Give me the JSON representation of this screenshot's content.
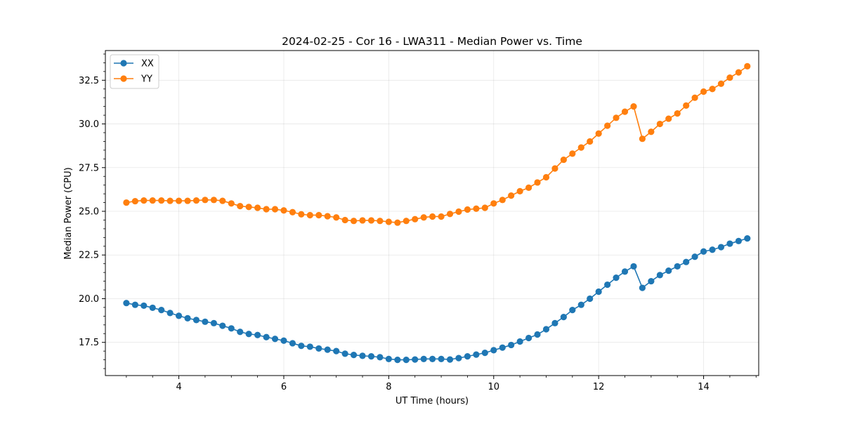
{
  "chart_data": {
    "type": "line",
    "title": "2024-02-25 - Cor 16 - LWA311 - Median Power vs. Time",
    "xlabel": "UT Time (hours)",
    "ylabel": "Median Power (CPU)",
    "xlim": [
      2.6,
      15.05
    ],
    "ylim": [
      15.6,
      34.2
    ],
    "xticks": [
      4,
      6,
      8,
      10,
      12,
      14
    ],
    "xtick_labels": [
      "4",
      "6",
      "8",
      "10",
      "12",
      "14"
    ],
    "yticks": [
      17.5,
      20.0,
      22.5,
      25.0,
      27.5,
      30.0,
      32.5
    ],
    "ytick_labels": [
      "17.5",
      "20.0",
      "22.5",
      "25.0",
      "27.5",
      "30.0",
      "32.5"
    ],
    "grid": true,
    "legend_position": "top-left",
    "x": [
      3.0,
      3.167,
      3.333,
      3.5,
      3.667,
      3.833,
      4.0,
      4.167,
      4.333,
      4.5,
      4.667,
      4.833,
      5.0,
      5.167,
      5.333,
      5.5,
      5.667,
      5.833,
      6.0,
      6.167,
      6.333,
      6.5,
      6.667,
      6.833,
      7.0,
      7.167,
      7.333,
      7.5,
      7.667,
      7.833,
      8.0,
      8.167,
      8.333,
      8.5,
      8.667,
      8.833,
      9.0,
      9.167,
      9.333,
      9.5,
      9.667,
      9.833,
      10.0,
      10.167,
      10.333,
      10.5,
      10.667,
      10.833,
      11.0,
      11.167,
      11.333,
      11.5,
      11.667,
      11.833,
      12.0,
      12.167,
      12.333,
      12.5,
      12.667,
      12.833,
      13.0,
      13.167,
      13.333,
      13.5,
      13.667,
      13.833,
      14.0,
      14.167,
      14.333,
      14.5,
      14.667,
      14.833
    ],
    "series": [
      {
        "name": "XX",
        "color": "#1f77b4",
        "values": [
          19.75,
          19.65,
          19.6,
          19.48,
          19.35,
          19.18,
          19.02,
          18.88,
          18.78,
          18.68,
          18.6,
          18.45,
          18.3,
          18.1,
          17.98,
          17.92,
          17.8,
          17.7,
          17.6,
          17.45,
          17.3,
          17.25,
          17.15,
          17.08,
          17.0,
          16.85,
          16.78,
          16.73,
          16.7,
          16.65,
          16.55,
          16.5,
          16.5,
          16.52,
          16.55,
          16.55,
          16.55,
          16.52,
          16.6,
          16.7,
          16.8,
          16.9,
          17.05,
          17.2,
          17.35,
          17.55,
          17.75,
          17.95,
          18.25,
          18.6,
          18.95,
          19.35,
          19.65,
          20.0,
          20.4,
          20.8,
          21.2,
          21.55,
          21.85,
          20.62,
          21.0,
          21.35,
          21.6,
          21.85,
          22.1,
          22.4,
          22.7,
          22.8,
          22.95,
          23.15,
          23.3,
          23.45
        ]
      },
      {
        "name": "YY",
        "color": "#ff7f0e",
        "values": [
          25.5,
          25.58,
          25.62,
          25.62,
          25.62,
          25.6,
          25.6,
          25.6,
          25.62,
          25.65,
          25.65,
          25.6,
          25.45,
          25.3,
          25.25,
          25.2,
          25.12,
          25.12,
          25.05,
          24.95,
          24.83,
          24.78,
          24.78,
          24.72,
          24.65,
          24.5,
          24.45,
          24.48,
          24.48,
          24.45,
          24.4,
          24.35,
          24.45,
          24.55,
          24.65,
          24.7,
          24.7,
          24.85,
          24.98,
          25.1,
          25.15,
          25.2,
          25.45,
          25.65,
          25.9,
          26.15,
          26.35,
          26.65,
          26.95,
          27.45,
          27.95,
          28.3,
          28.65,
          29.0,
          29.45,
          29.9,
          30.35,
          30.7,
          31.0,
          29.15,
          29.55,
          30.0,
          30.3,
          30.6,
          31.05,
          31.5,
          31.85,
          32.0,
          32.3,
          32.65,
          32.95,
          33.3
        ]
      }
    ]
  }
}
